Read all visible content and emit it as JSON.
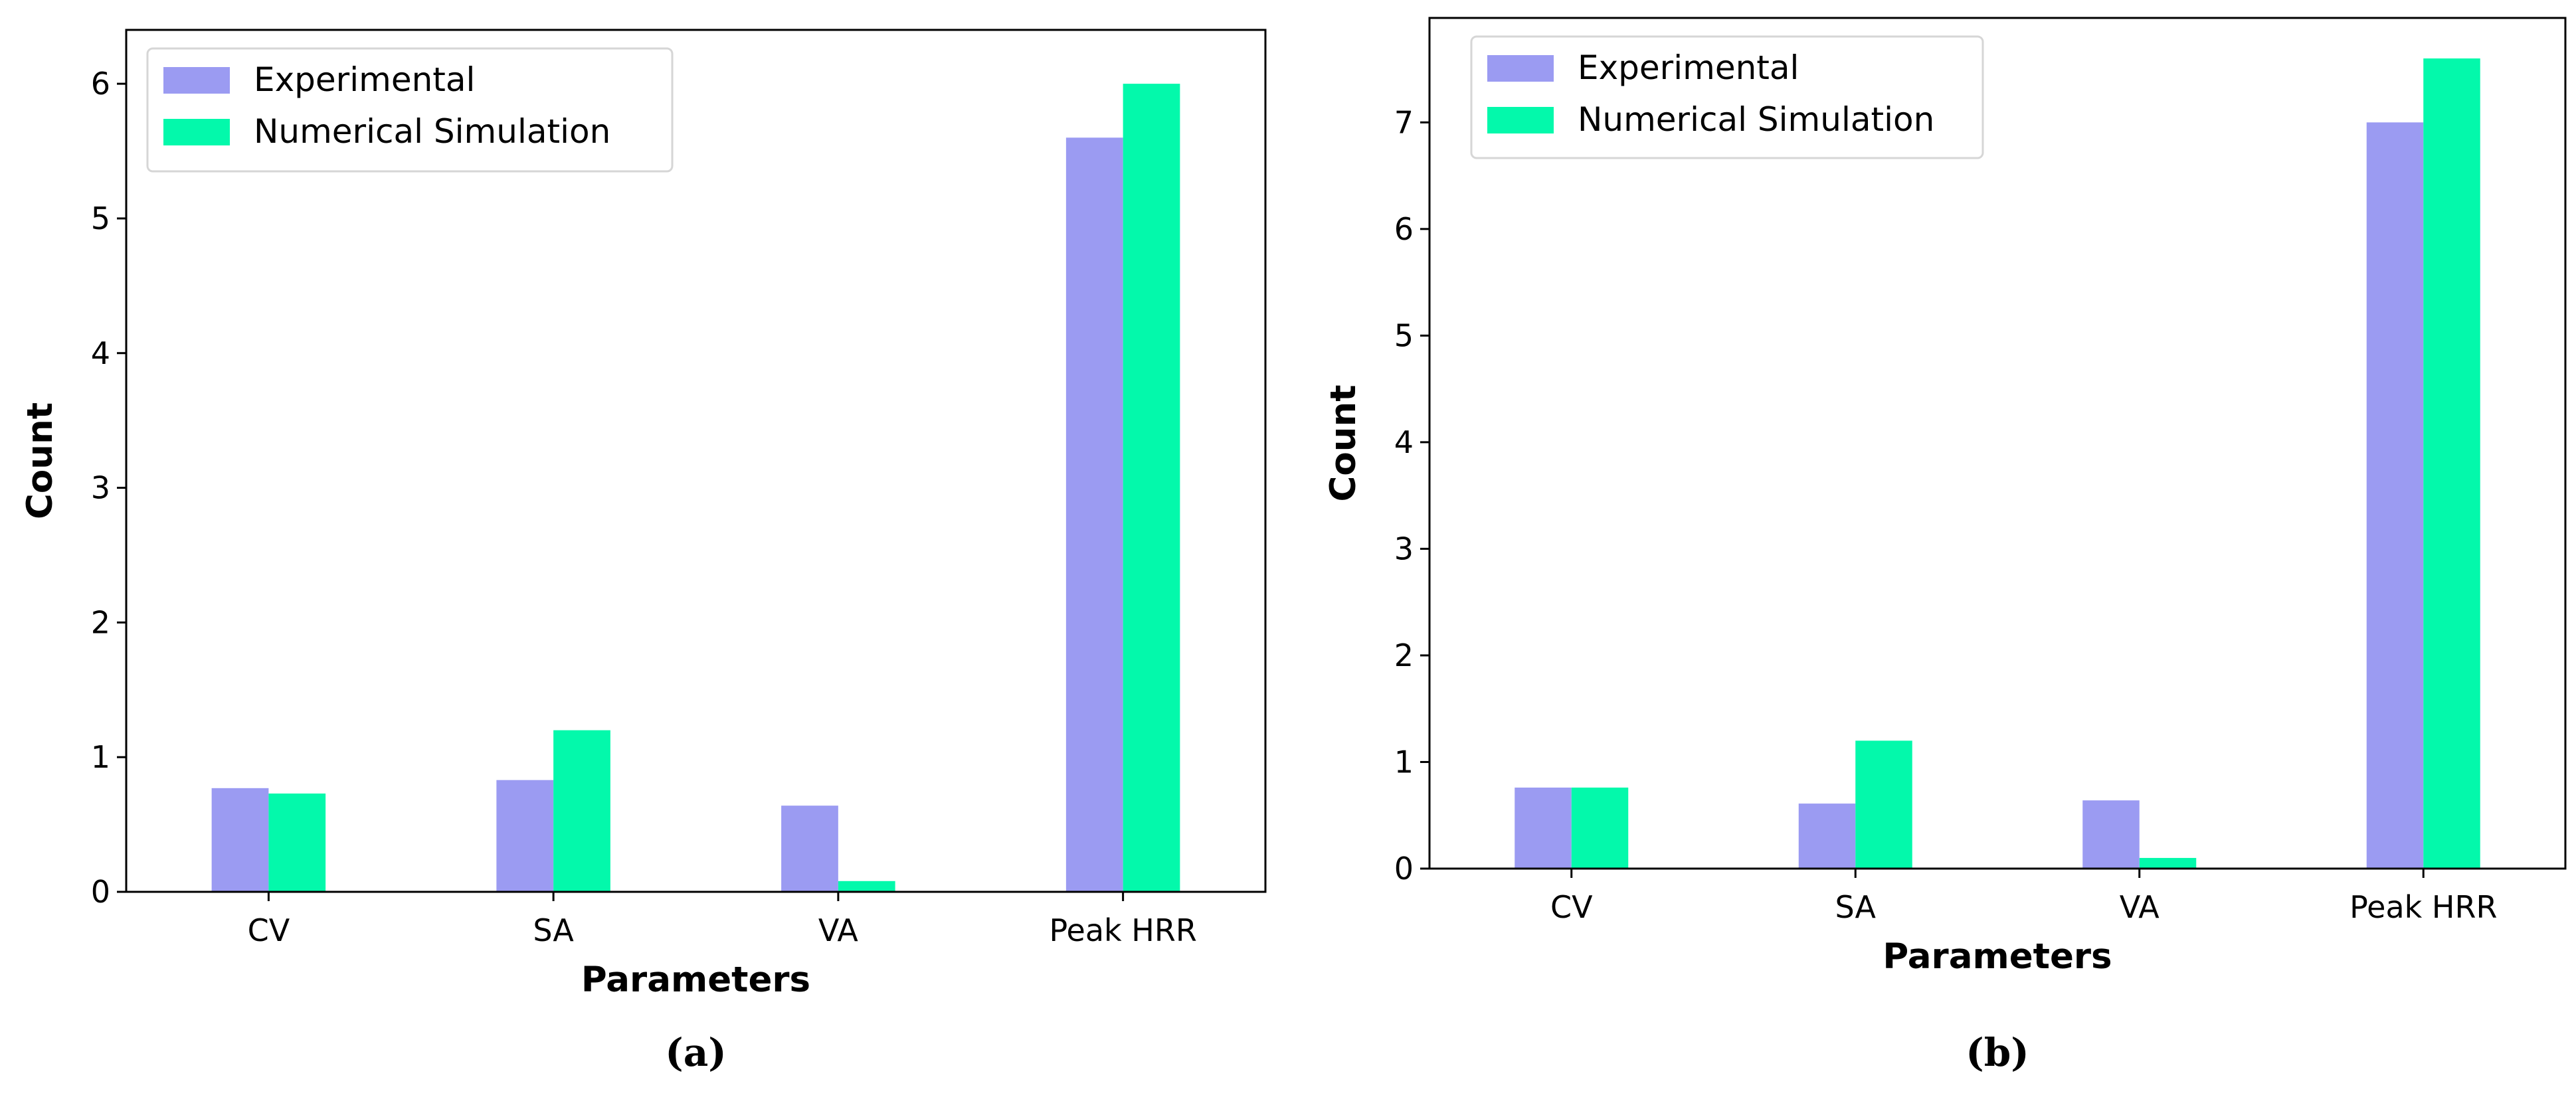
{
  "colors": {
    "experimental": "#9b9bf2",
    "numerical": "#03f9ab"
  },
  "chart_data": [
    {
      "type": "bar",
      "caption": "(a)",
      "categories": [
        "CV",
        "SA",
        "VA",
        "Peak HRR"
      ],
      "series": [
        {
          "name": "Experimental",
          "values": [
            0.77,
            0.83,
            0.64,
            5.6
          ]
        },
        {
          "name": "Numerical Simulation",
          "values": [
            0.73,
            1.2,
            0.08,
            6.0
          ]
        }
      ],
      "xlabel": "Parameters",
      "ylabel": "Count",
      "ylim": [
        0,
        6.4
      ],
      "yticks": [
        "0",
        "1",
        "2",
        "3",
        "4",
        "5",
        "6"
      ],
      "legend": "top-left",
      "grid": false
    },
    {
      "type": "bar",
      "caption": "(b)",
      "categories": [
        "CV",
        "SA",
        "VA",
        "Peak HRR"
      ],
      "series": [
        {
          "name": "Experimental",
          "values": [
            0.76,
            0.61,
            0.64,
            7.0
          ]
        },
        {
          "name": "Numerical Simulation",
          "values": [
            0.76,
            1.2,
            0.1,
            7.6
          ]
        }
      ],
      "xlabel": "Parameters",
      "ylabel": "Count",
      "ylim": [
        0,
        7.98
      ],
      "yticks": [
        "0",
        "1",
        "2",
        "3",
        "4",
        "5",
        "6",
        "7"
      ],
      "legend": "top-left",
      "grid": false
    }
  ]
}
